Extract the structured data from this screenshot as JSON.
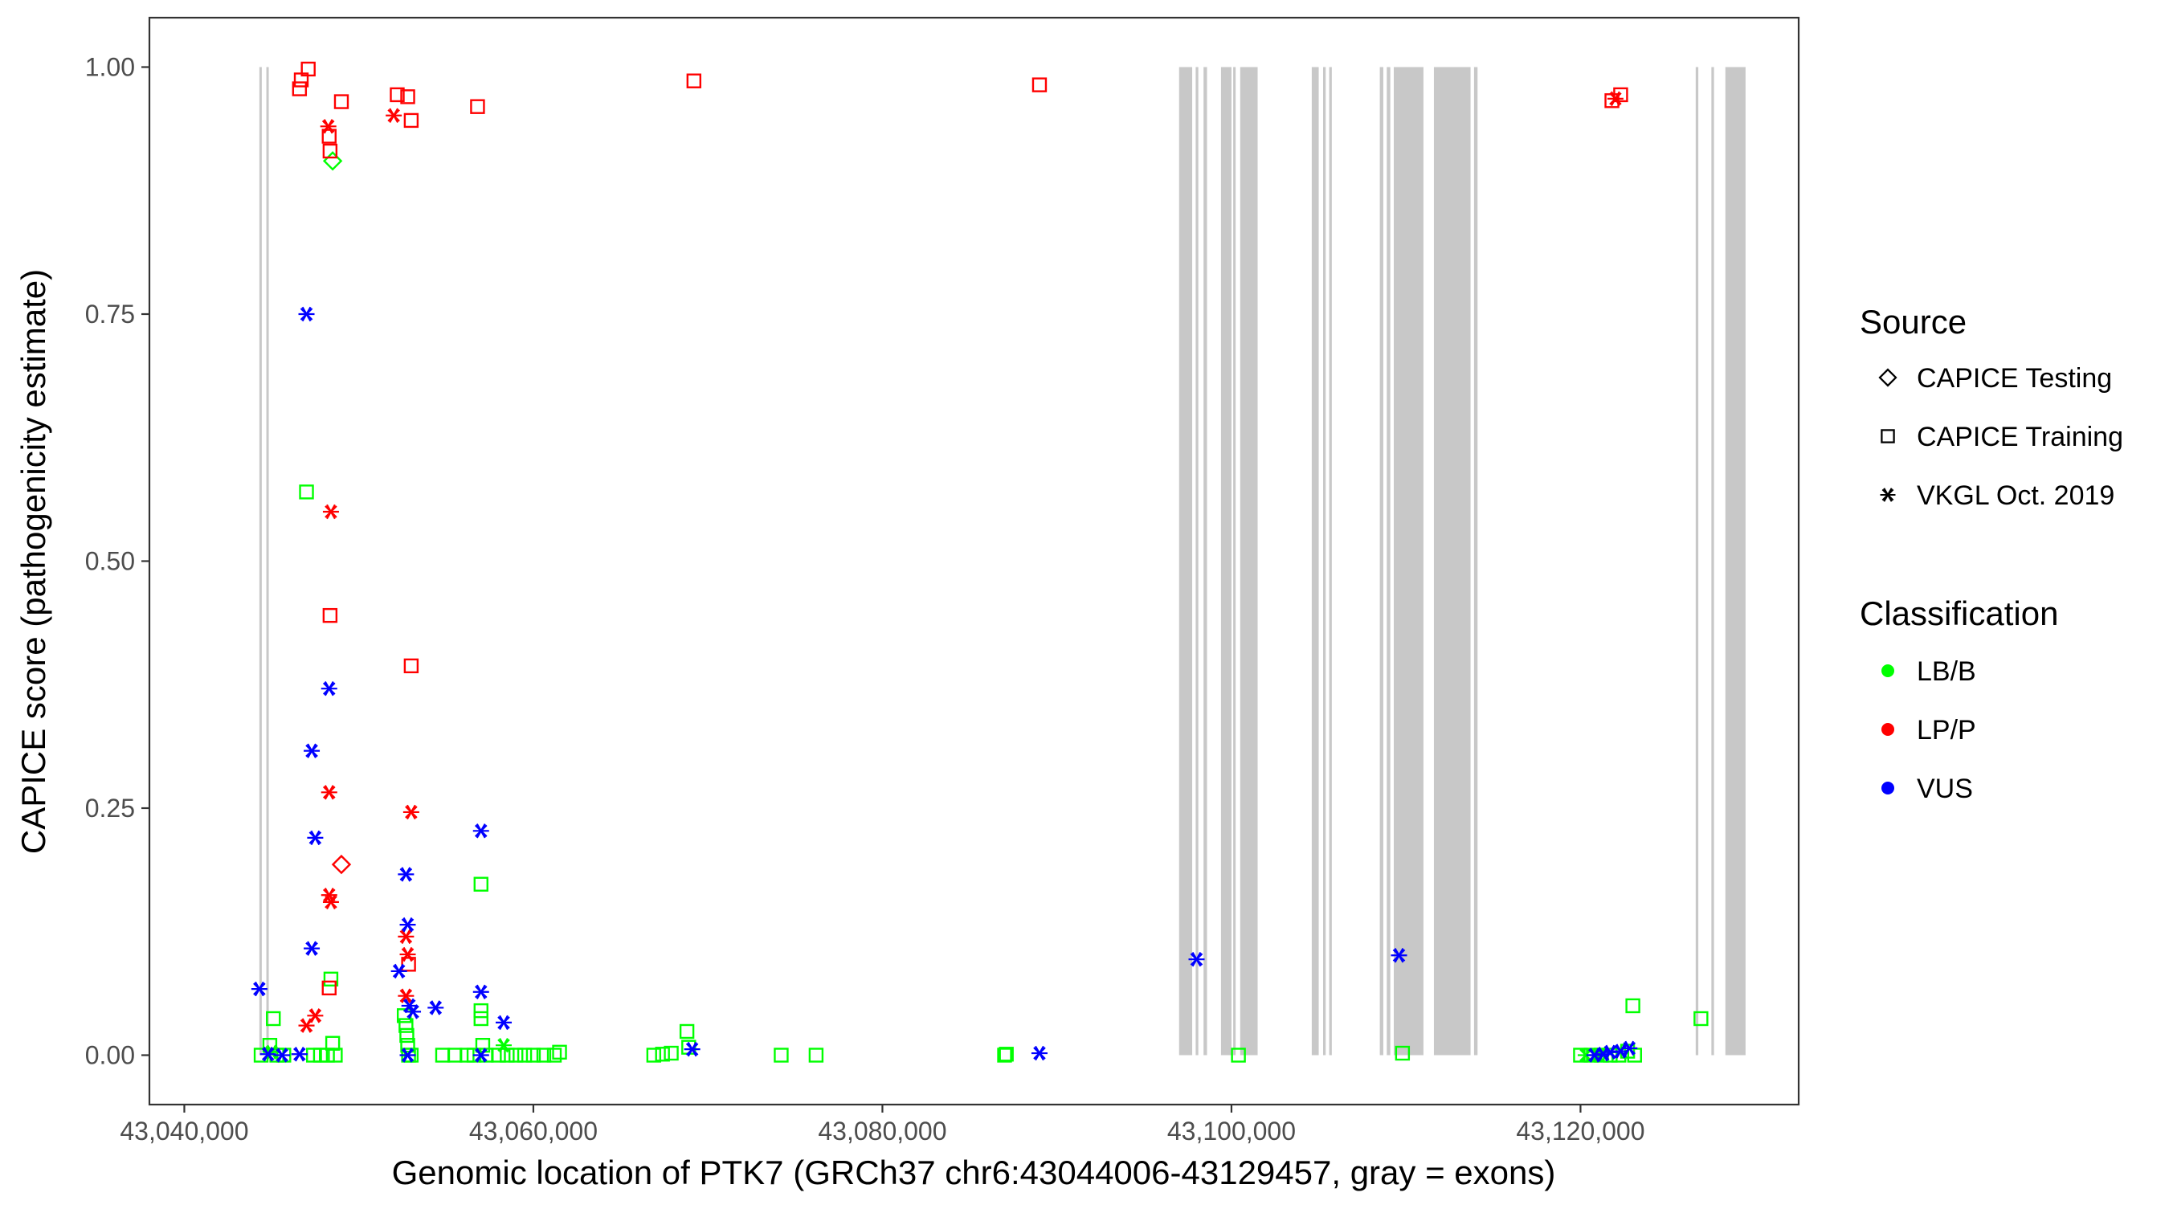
{
  "chart_data": {
    "type": "scatter",
    "xlabel": "Genomic location of PTK7 (GRCh37 chr6:43044006-43129457, gray = exons)",
    "ylabel": "CAPICE score (pathogenicity estimate)",
    "xlim": [
      43038000,
      43132500
    ],
    "ylim": [
      -0.05,
      1.05
    ],
    "x_ticks": [
      43040000,
      43060000,
      43080000,
      43100000,
      43120000
    ],
    "x_tick_labels": [
      "43,040,000",
      "43,060,000",
      "43,080,000",
      "43,100,000",
      "43,120,000"
    ],
    "y_ticks": [
      0,
      0.25,
      0.5,
      0.75,
      1
    ],
    "y_tick_labels": [
      "0.00",
      "0.25",
      "0.50",
      "0.75",
      "1.00"
    ],
    "grid": false,
    "legend_placement": "right",
    "legends": {
      "source": {
        "title": "Source",
        "items": [
          {
            "label": "CAPICE Testing",
            "shape": "diamond"
          },
          {
            "label": "CAPICE Training",
            "shape": "square"
          },
          {
            "label": "VKGL Oct. 2019",
            "shape": "asterisk"
          }
        ]
      },
      "classification": {
        "title": "Classification",
        "items": [
          {
            "label": "LB/B",
            "color": "#00ff00"
          },
          {
            "label": "LP/P",
            "color": "#ff0000"
          },
          {
            "label": "VUS",
            "color": "#0000ff"
          }
        ]
      }
    },
    "exon_color": "#c8c8c8",
    "exons": [
      [
        43044300,
        43044400
      ],
      [
        43044700,
        43044780
      ],
      [
        43097000,
        43097750
      ],
      [
        43097950,
        43098100
      ],
      [
        43098400,
        43098600
      ],
      [
        43099400,
        43100000
      ],
      [
        43100100,
        43100200
      ],
      [
        43100500,
        43101500
      ],
      [
        43104600,
        43105000
      ],
      [
        43105250,
        43105400
      ],
      [
        43105600,
        43105750
      ],
      [
        43108500,
        43108700
      ],
      [
        43108900,
        43109100
      ],
      [
        43109300,
        43111000
      ],
      [
        43111600,
        43113700
      ],
      [
        43113900,
        43114100
      ],
      [
        43126600,
        43126750
      ],
      [
        43127500,
        43127650
      ],
      [
        43128300,
        43129457
      ]
    ],
    "series": [
      {
        "classification": "LB/B",
        "source": "CAPICE Training",
        "points": [
          [
            43044400,
            0.0
          ],
          [
            43044900,
            0.01
          ],
          [
            43045100,
            0.037
          ],
          [
            43045300,
            0.0
          ],
          [
            43045700,
            0.0
          ],
          [
            43047000,
            0.57
          ],
          [
            43047400,
            0.0
          ],
          [
            43047800,
            0.0
          ],
          [
            43048200,
            0.0
          ],
          [
            43048400,
            0.077
          ],
          [
            43048500,
            0.012
          ],
          [
            43048650,
            0.0
          ],
          [
            43052600,
            0.04
          ],
          [
            43052700,
            0.03
          ],
          [
            43052750,
            0.02
          ],
          [
            43052800,
            0.01
          ],
          [
            43052850,
            0.0
          ],
          [
            43053000,
            0.0
          ],
          [
            43054800,
            0.0
          ],
          [
            43055500,
            0.0
          ],
          [
            43056200,
            0.0
          ],
          [
            43056600,
            0.0
          ],
          [
            43057000,
            0.173
          ],
          [
            43057000,
            0.045
          ],
          [
            43057000,
            0.037
          ],
          [
            43057100,
            0.01
          ],
          [
            43057300,
            0.0
          ],
          [
            43058000,
            0.0
          ],
          [
            43058500,
            0.0
          ],
          [
            43059000,
            0.0
          ],
          [
            43059500,
            0.0
          ],
          [
            43060000,
            0.0
          ],
          [
            43060600,
            0.0
          ],
          [
            43061200,
            0.0
          ],
          [
            43061500,
            0.003
          ],
          [
            43066900,
            0.0
          ],
          [
            43067400,
            0.001
          ],
          [
            43067900,
            0.002
          ],
          [
            43068800,
            0.024
          ],
          [
            43068900,
            0.008
          ],
          [
            43074200,
            0.0
          ],
          [
            43076200,
            0.0
          ],
          [
            43087000,
            0.0
          ],
          [
            43087100,
            0.001
          ],
          [
            43100400,
            0.0
          ],
          [
            43109800,
            0.002
          ],
          [
            43120000,
            0.0
          ],
          [
            43120600,
            0.0
          ],
          [
            43121200,
            0.0
          ],
          [
            43121700,
            0.0
          ],
          [
            43122200,
            0.0
          ],
          [
            43122700,
            0.004
          ],
          [
            43123000,
            0.05
          ],
          [
            43123100,
            0.0
          ],
          [
            43126900,
            0.037
          ]
        ]
      },
      {
        "classification": "LB/B",
        "source": "VKGL Oct. 2019",
        "points": [
          [
            43045000,
            0.003
          ],
          [
            43058300,
            0.01
          ],
          [
            43120300,
            0.0
          ],
          [
            43121000,
            0.0
          ]
        ]
      },
      {
        "classification": "LB/B",
        "source": "CAPICE Testing",
        "points": [
          [
            43048500,
            0.905
          ]
        ]
      },
      {
        "classification": "LP/P",
        "source": "CAPICE Training",
        "points": [
          [
            43046600,
            0.978
          ],
          [
            43046700,
            0.987
          ],
          [
            43047100,
            0.998
          ],
          [
            43048300,
            0.93
          ],
          [
            43048350,
            0.915
          ],
          [
            43049000,
            0.965
          ],
          [
            43052200,
            0.972
          ],
          [
            43052800,
            0.97
          ],
          [
            43053000,
            0.946
          ],
          [
            43056800,
            0.96
          ],
          [
            43069200,
            0.986
          ],
          [
            43089000,
            0.982
          ],
          [
            43121800,
            0.966
          ],
          [
            43122300,
            0.972
          ],
          [
            43048350,
            0.445
          ],
          [
            43053000,
            0.394
          ],
          [
            43048300,
            0.068
          ],
          [
            43052850,
            0.092
          ]
        ]
      },
      {
        "classification": "LP/P",
        "source": "VKGL Oct. 2019",
        "points": [
          [
            43052000,
            0.951
          ],
          [
            43048250,
            0.94
          ],
          [
            43048400,
            0.55
          ],
          [
            43048300,
            0.266
          ],
          [
            43053000,
            0.246
          ],
          [
            43048300,
            0.162
          ],
          [
            43048400,
            0.155
          ],
          [
            43052700,
            0.12
          ],
          [
            43052800,
            0.102
          ],
          [
            43047500,
            0.04
          ],
          [
            43047000,
            0.03
          ],
          [
            43052700,
            0.06
          ],
          [
            43122000,
            0.968
          ]
        ]
      },
      {
        "classification": "LP/P",
        "source": "CAPICE Testing",
        "points": [
          [
            43049000,
            0.193
          ]
        ]
      },
      {
        "classification": "VUS",
        "source": "VKGL Oct. 2019",
        "points": [
          [
            43044300,
            0.067
          ],
          [
            43044800,
            0.001
          ],
          [
            43045600,
            0.0
          ],
          [
            43047000,
            0.75
          ],
          [
            43048300,
            0.371
          ],
          [
            43047300,
            0.308
          ],
          [
            43047500,
            0.22
          ],
          [
            43047300,
            0.108
          ],
          [
            43046600,
            0.001
          ],
          [
            43052700,
            0.183
          ],
          [
            43052800,
            0.132
          ],
          [
            43052300,
            0.085
          ],
          [
            43052900,
            0.05
          ],
          [
            43053100,
            0.044
          ],
          [
            43054400,
            0.048
          ],
          [
            43057000,
            0.227
          ],
          [
            43057000,
            0.064
          ],
          [
            43058300,
            0.033
          ],
          [
            43052800,
            0.0
          ],
          [
            43057000,
            0.0
          ],
          [
            43069100,
            0.006
          ],
          [
            43089000,
            0.002
          ],
          [
            43098000,
            0.097
          ],
          [
            43109600,
            0.101
          ],
          [
            43120800,
            0.0
          ],
          [
            43121300,
            0.001
          ],
          [
            43121700,
            0.003
          ],
          [
            43122300,
            0.004
          ],
          [
            43122800,
            0.007
          ]
        ]
      }
    ]
  }
}
